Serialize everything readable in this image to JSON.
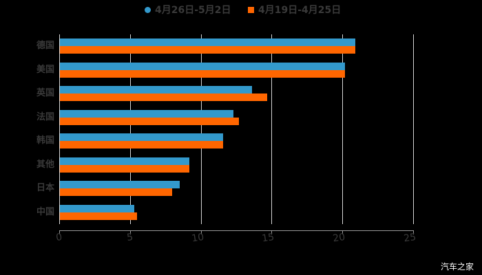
{
  "chart_data": {
    "type": "bar",
    "orientation": "horizontal",
    "title": "",
    "xlabel": "",
    "ylabel": "",
    "categories": [
      "德国",
      "美国",
      "英国",
      "法国",
      "韩国",
      "其他",
      "日本",
      "中国"
    ],
    "series": [
      {
        "name": "4月26日-5月2日",
        "color": "#3399cc",
        "marker": "circle",
        "values": [
          20.9,
          20.2,
          13.6,
          12.3,
          11.6,
          9.2,
          8.5,
          5.3
        ]
      },
      {
        "name": "4月19日-4月25日",
        "color": "#ff6600",
        "marker": "square",
        "values": [
          20.9,
          20.2,
          14.7,
          12.7,
          11.6,
          9.2,
          8.0,
          5.5
        ]
      }
    ],
    "xlim": [
      0,
      25
    ],
    "xticks": [
      "0",
      "5",
      "10",
      "15",
      "20",
      "25"
    ],
    "grid": true,
    "legend_position": "top"
  },
  "legend": {
    "series_0": "4月26日-5月2日",
    "series_1": "4月19日-4月25日"
  },
  "axis": {
    "xticks": [
      "0",
      "5",
      "10",
      "15",
      "20",
      "25"
    ]
  },
  "categories": [
    "德国",
    "美国",
    "英国",
    "法国",
    "韩国",
    "其他",
    "日本",
    "中国"
  ],
  "watermark": "汽车之家"
}
